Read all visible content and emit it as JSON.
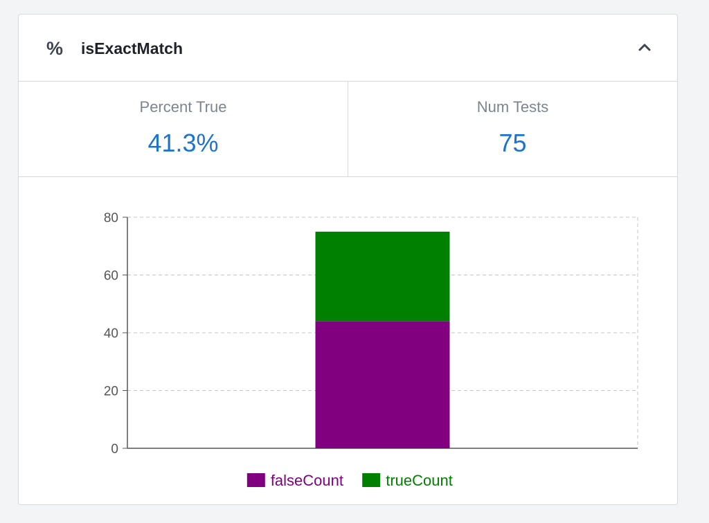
{
  "header": {
    "icon": "percent-icon",
    "icon_glyph": "%",
    "title": "isExactMatch",
    "collapse_icon": "chevron-up-icon"
  },
  "stats": [
    {
      "label": "Percent True",
      "value": "41.3%"
    },
    {
      "label": "Num Tests",
      "value": "75"
    }
  ],
  "colors": {
    "accent": "#1a73d1",
    "falseCount": "#800080",
    "trueCount": "#008000"
  },
  "chart_data": {
    "type": "bar",
    "stacked": true,
    "categories": [
      ""
    ],
    "series": [
      {
        "name": "falseCount",
        "values": [
          44
        ],
        "color": "#800080"
      },
      {
        "name": "trueCount",
        "values": [
          31
        ],
        "color": "#008000"
      }
    ],
    "ylim": [
      0,
      80
    ],
    "yticks": [
      0,
      20,
      40,
      60,
      80
    ],
    "grid": true,
    "legend": "bottom"
  }
}
